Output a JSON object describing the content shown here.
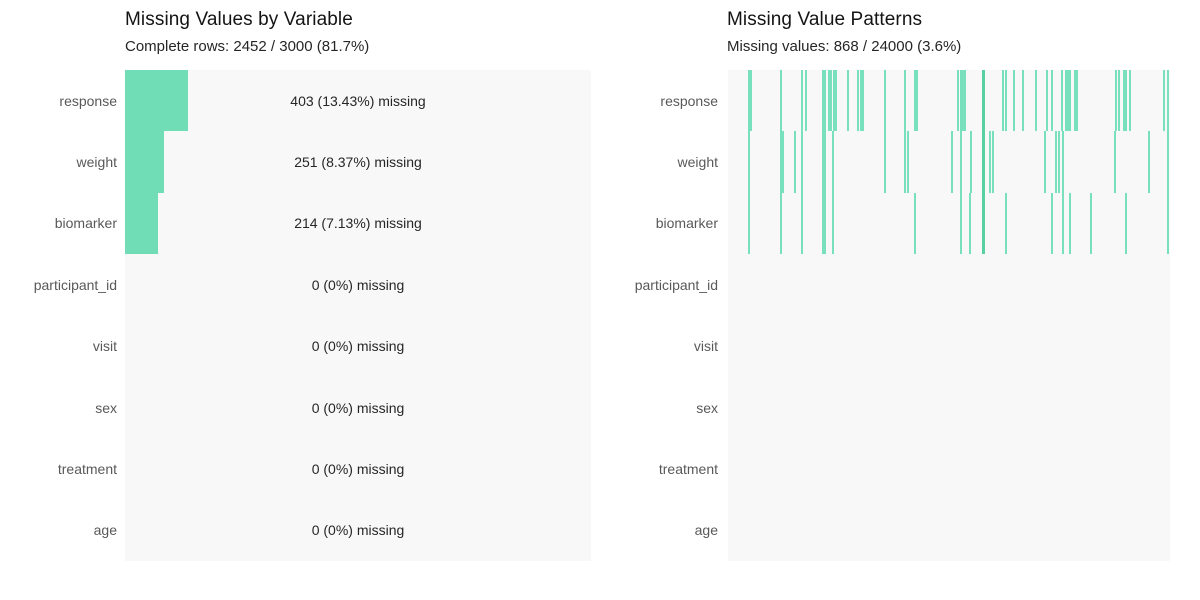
{
  "colors": {
    "bar_fill": "#70ddb7",
    "tick_fill": "#79e0bd",
    "tick_fill_wide": "#57d0a2",
    "panel_background": "#f8f8f8",
    "title_text": "#141414",
    "subtitle_text": "#262626",
    "axis_label_text": "#595959",
    "value_label_text": "#262626"
  },
  "chart_data": [
    {
      "type": "bar",
      "orientation": "horizontal",
      "title": "Missing Values by Variable",
      "subtitle": "Complete rows: 2452 / 3000 (81.7%)",
      "total_rows": 3000,
      "complete_rows": 2452,
      "complete_pct": 81.7,
      "xlim": [
        0,
        100
      ],
      "grid": false,
      "legend": "none",
      "categories": [
        "response",
        "weight",
        "biomarker",
        "participant_id",
        "visit",
        "sex",
        "treatment",
        "age"
      ],
      "missing_counts": [
        403,
        251,
        214,
        0,
        0,
        0,
        0,
        0
      ],
      "missing_pcts": [
        13.43,
        8.37,
        7.13,
        0,
        0,
        0,
        0,
        0
      ],
      "bar_labels": [
        "403 (13.43%) missing",
        "251 (8.37%) missing",
        "214 (7.13%) missing",
        "0 (0%) missing",
        "0 (0%) missing",
        "0 (0%) missing",
        "0 (0%) missing",
        "0 (0%) missing"
      ]
    },
    {
      "type": "heatmap",
      "title": "Missing Value Patterns",
      "subtitle": "Missing values: 868 / 24000 (3.6%)",
      "missing_total": 868,
      "cells_total": 24000,
      "missing_pct": 3.6,
      "grid": false,
      "legend": "none",
      "categories": [
        "response",
        "weight",
        "biomarker",
        "participant_id",
        "visit",
        "sex",
        "treatment",
        "age"
      ],
      "tick_positions_pct": {
        "response": [
          4.8,
          5.2,
          12.0,
          16.7,
          17.6,
          21.5,
          21.9,
          22.9,
          23.3,
          24.0,
          24.4,
          27.1,
          29.4,
          30.1,
          30.5,
          35.5,
          40.0,
          42.3,
          42.8,
          52.0,
          52.7,
          53.2,
          53.6,
          57.9,
          62.2,
          62.9,
          64.7,
          66.7,
          69.7,
          72.2,
          73.3,
          75.6,
          76.5,
          76.9,
          77.4,
          78.5,
          79.0,
          87.8,
          88.5,
          89.6,
          90.0,
          91.0,
          98.6,
          99.5
        ],
        "weight": [
          4.8,
          12.0,
          12.4,
          15.2,
          16.7,
          21.5,
          21.9,
          23.8,
          35.5,
          40.0,
          40.7,
          50.7,
          52.7,
          55.0,
          57.9,
          59.3,
          60.0,
          71.7,
          74.2,
          74.9,
          75.8,
          87.6,
          95.2,
          99.5
        ],
        "biomarker": [
          4.8,
          12.0,
          16.7,
          21.5,
          21.9,
          23.8,
          42.3,
          52.7,
          54.8,
          57.9,
          62.9,
          73.3,
          75.8,
          77.4,
          82.1,
          90.0,
          99.5
        ],
        "participant_id": [],
        "visit": [],
        "sex": [],
        "treatment": [],
        "age": []
      },
      "wide_tick_positions_pct": {
        "response": [
          57.9
        ],
        "weight": [
          57.9
        ],
        "biomarker": [
          57.9
        ]
      }
    }
  ]
}
